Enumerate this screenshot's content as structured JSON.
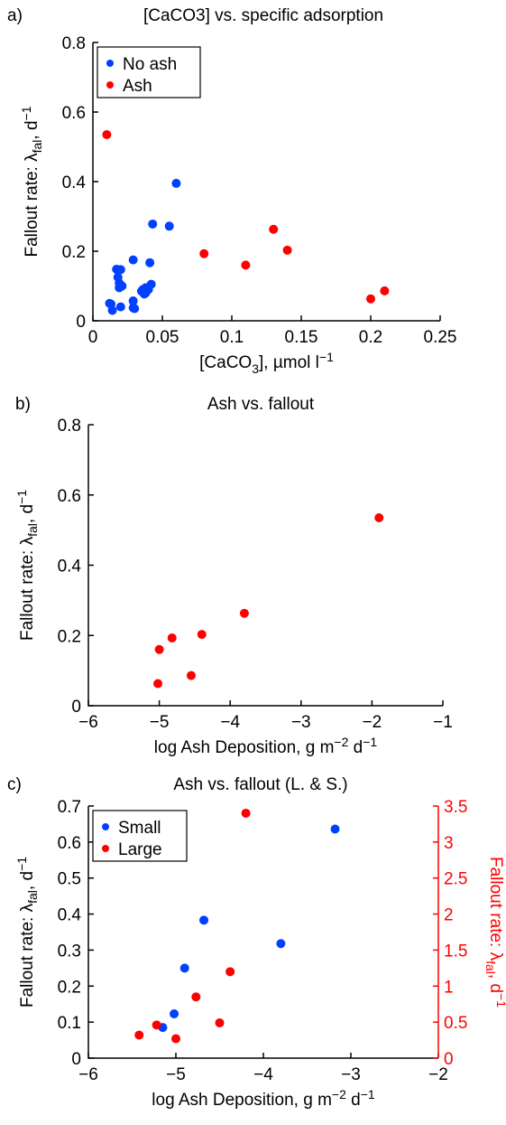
{
  "colors": {
    "blue": "#0040ff",
    "red": "#ff0000"
  },
  "chart_data": [
    {
      "panel_label": "a)",
      "type": "scatter",
      "title": "[CaCO3] vs. specific adsorption",
      "xlabel": "[CaCO3], µmol l-1",
      "ylabel": "Fallout rate: λfal, d-1",
      "xlim": [
        0,
        0.25
      ],
      "ylim": [
        0,
        0.8
      ],
      "xticks": [
        "0",
        "0.05",
        "0.1",
        "0.15",
        "0.2",
        "0.25"
      ],
      "yticks": [
        "0",
        "0.2",
        "0.4",
        "0.6",
        "0.8"
      ],
      "legend": [
        "No ash",
        "Ash"
      ],
      "legend_position": "top-left",
      "series": [
        {
          "name": "No ash",
          "color": "blue",
          "x": [
            0.012,
            0.013,
            0.014,
            0.017,
            0.018,
            0.019,
            0.019,
            0.02,
            0.02,
            0.021,
            0.029,
            0.029,
            0.029,
            0.03,
            0.035,
            0.036,
            0.037,
            0.038,
            0.038,
            0.04,
            0.041,
            0.042,
            0.043,
            0.055,
            0.06
          ],
          "y": [
            0.05,
            0.048,
            0.03,
            0.148,
            0.125,
            0.108,
            0.095,
            0.147,
            0.04,
            0.1,
            0.175,
            0.057,
            0.037,
            0.035,
            0.085,
            0.09,
            0.077,
            0.095,
            0.08,
            0.09,
            0.167,
            0.105,
            0.278,
            0.272,
            0.395
          ]
        },
        {
          "name": "Ash",
          "color": "red",
          "x": [
            0.01,
            0.08,
            0.11,
            0.13,
            0.14,
            0.2,
            0.21
          ],
          "y": [
            0.535,
            0.193,
            0.16,
            0.263,
            0.203,
            0.063,
            0.086
          ]
        }
      ]
    },
    {
      "panel_label": "b)",
      "type": "scatter",
      "title": "Ash vs. fallout",
      "xlabel": "log Ash Deposition, g m-2 d-1",
      "ylabel": "Fallout rate: λfal, d-1",
      "xlim": [
        -6,
        -1
      ],
      "ylim": [
        0,
        0.8
      ],
      "xticks": [
        "−6",
        "−5",
        "−4",
        "−3",
        "−2",
        "−1"
      ],
      "yticks": [
        "0",
        "0.2",
        "0.4",
        "0.6",
        "0.8"
      ],
      "series": [
        {
          "color": "red",
          "x": [
            -5.02,
            -5.0,
            -4.82,
            -4.55,
            -4.4,
            -3.8,
            -1.9
          ],
          "y": [
            0.063,
            0.16,
            0.193,
            0.086,
            0.203,
            0.263,
            0.535
          ]
        }
      ]
    },
    {
      "panel_label": "c)",
      "type": "scatter",
      "title": "Ash vs. fallout  (L. & S.)",
      "xlabel": "log Ash Deposition, g m-2 d-1",
      "ylabel": "Fallout rate: λfal, d-1",
      "ylabel_right": "Fallout rate: λfal, d-1",
      "xlim": [
        -6,
        -2
      ],
      "ylim": [
        0,
        0.7
      ],
      "ylim_right": [
        0,
        3.5
      ],
      "xticks": [
        "−6",
        "−5",
        "−4",
        "−3",
        "−2"
      ],
      "yticks": [
        "0",
        "0.1",
        "0.2",
        "0.3",
        "0.4",
        "0.5",
        "0.6",
        "0.7"
      ],
      "yticks_right": [
        "0",
        "0.5",
        "1",
        "1.5",
        "2",
        "2.5",
        "3",
        "3.5"
      ],
      "legend": [
        "Small",
        "Large"
      ],
      "legend_position": "top-left",
      "series": [
        {
          "name": "Small",
          "color": "blue",
          "axis": "left",
          "x": [
            -5.15,
            -5.02,
            -4.9,
            -4.68,
            -3.8,
            -3.18
          ],
          "y": [
            0.085,
            0.123,
            0.25,
            0.383,
            0.318,
            0.636
          ]
        },
        {
          "name": "Large",
          "color": "red",
          "axis": "right",
          "x": [
            -5.42,
            -5.22,
            -5.0,
            -4.77,
            -4.5,
            -4.38,
            -4.2
          ],
          "y": [
            0.32,
            0.46,
            0.27,
            0.85,
            0.49,
            1.2,
            3.4
          ]
        }
      ]
    }
  ]
}
